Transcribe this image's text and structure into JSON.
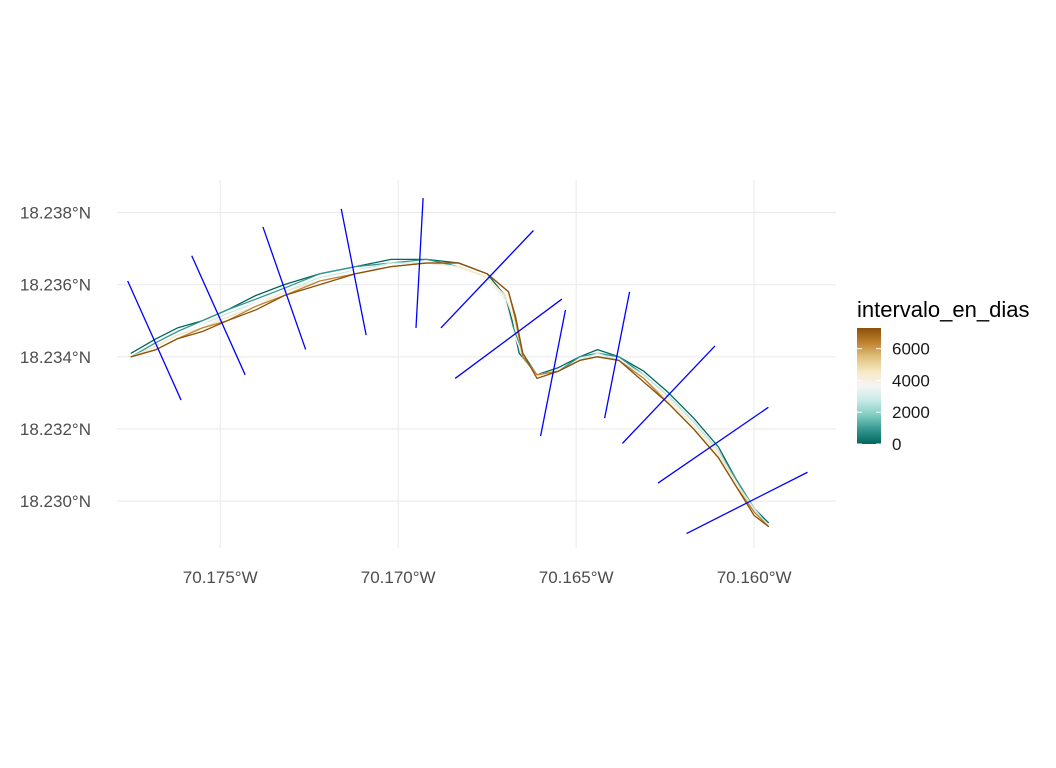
{
  "chart_data": {
    "type": "map",
    "xlabel": "",
    "ylabel": "",
    "x_ticks": [
      {
        "value": -70.175,
        "label": "70.175°W"
      },
      {
        "value": -70.17,
        "label": "70.170°W"
      },
      {
        "value": -70.165,
        "label": "70.165°W"
      },
      {
        "value": -70.16,
        "label": "70.160°W"
      }
    ],
    "y_ticks": [
      {
        "value": 18.238,
        "label": "18.238°N"
      },
      {
        "value": 18.236,
        "label": "18.236°N"
      },
      {
        "value": 18.234,
        "label": "18.234°N"
      },
      {
        "value": 18.232,
        "label": "18.232°N"
      },
      {
        "value": 18.23,
        "label": "18.230°N"
      }
    ],
    "xlim": [
      -70.1779,
      -70.1577
    ],
    "ylim": [
      18.2287,
      18.2389
    ],
    "grid": true,
    "legend": {
      "title": "intervalo_en_dias",
      "placement": "right",
      "breaks": [
        0,
        2000,
        4000,
        6000
      ],
      "labels": [
        "0",
        "2000",
        "4000",
        "6000"
      ],
      "range": [
        0,
        7300
      ],
      "colors": [
        "#01665e",
        "#35978f",
        "#80cdc1",
        "#c7eae5",
        "#f5f5f5",
        "#f6e8c3",
        "#dfc27d",
        "#bf812d",
        "#8c510a"
      ]
    },
    "transect_color": "#0000ff",
    "transects": [
      {
        "from": [
          -70.1776,
          18.2361
        ],
        "to": [
          -70.1761,
          18.2328
        ]
      },
      {
        "from": [
          -70.1758,
          18.2368
        ],
        "to": [
          -70.1743,
          18.2335
        ]
      },
      {
        "from": [
          -70.1738,
          18.2376
        ],
        "to": [
          -70.1726,
          18.2342
        ]
      },
      {
        "from": [
          -70.1716,
          18.2381
        ],
        "to": [
          -70.1709,
          18.2346
        ]
      },
      {
        "from": [
          -70.1693,
          18.2384
        ],
        "to": [
          -70.1695,
          18.2348
        ]
      },
      {
        "from": [
          -70.1662,
          18.2375
        ],
        "to": [
          -70.1688,
          18.2348
        ]
      },
      {
        "from": [
          -70.1654,
          18.2356
        ],
        "to": [
          -70.1684,
          18.2334
        ]
      },
      {
        "from": [
          -70.1653,
          18.2353
        ],
        "to": [
          -70.166,
          18.2318
        ]
      },
      {
        "from": [
          -70.1635,
          18.2358
        ],
        "to": [
          -70.1642,
          18.2323
        ]
      },
      {
        "from": [
          -70.1611,
          18.2343
        ],
        "to": [
          -70.1637,
          18.2316
        ]
      },
      {
        "from": [
          -70.1596,
          18.2326
        ],
        "to": [
          -70.1627,
          18.2305
        ]
      },
      {
        "from": [
          -70.1585,
          18.2308
        ],
        "to": [
          -70.1619,
          18.2291
        ]
      }
    ],
    "series": [
      {
        "value": 0,
        "color": "#01665e",
        "points": [
          [
            -70.1775,
            18.2341
          ],
          [
            -70.1768,
            18.2345
          ],
          [
            -70.1762,
            18.2348
          ],
          [
            -70.1755,
            18.235
          ],
          [
            -70.1748,
            18.2353
          ],
          [
            -70.174,
            18.2357
          ],
          [
            -70.1732,
            18.236
          ],
          [
            -70.1722,
            18.2363
          ],
          [
            -70.1712,
            18.2365
          ],
          [
            -70.1702,
            18.2367
          ],
          [
            -70.1692,
            18.2367
          ],
          [
            -70.1683,
            18.2366
          ],
          [
            -70.1675,
            18.2363
          ],
          [
            -70.167,
            18.2357
          ],
          [
            -70.1668,
            18.235
          ],
          [
            -70.1666,
            18.2341
          ],
          [
            -70.1661,
            18.2335
          ],
          [
            -70.1655,
            18.2337
          ],
          [
            -70.1649,
            18.234
          ],
          [
            -70.1644,
            18.2342
          ],
          [
            -70.1638,
            18.234
          ],
          [
            -70.1631,
            18.2336
          ],
          [
            -70.1624,
            18.233
          ],
          [
            -70.1617,
            18.2323
          ],
          [
            -70.161,
            18.2315
          ],
          [
            -70.1605,
            18.2306
          ],
          [
            -70.16,
            18.2298
          ],
          [
            -70.1596,
            18.2294
          ]
        ]
      },
      {
        "value": 1500,
        "color": "#35978f",
        "points": [
          [
            -70.1775,
            18.234
          ],
          [
            -70.1768,
            18.2344
          ],
          [
            -70.1762,
            18.2347
          ],
          [
            -70.1755,
            18.235
          ],
          [
            -70.1748,
            18.2353
          ],
          [
            -70.174,
            18.2356
          ],
          [
            -70.1732,
            18.2359
          ],
          [
            -70.1722,
            18.2363
          ],
          [
            -70.1712,
            18.2365
          ],
          [
            -70.1702,
            18.2366
          ],
          [
            -70.1692,
            18.2367
          ],
          [
            -70.1683,
            18.2365
          ],
          [
            -70.1675,
            18.2362
          ],
          [
            -70.167,
            18.2356
          ],
          [
            -70.1668,
            18.2349
          ],
          [
            -70.1665,
            18.2341
          ],
          [
            -70.1661,
            18.2335
          ],
          [
            -70.1655,
            18.2336
          ],
          [
            -70.1649,
            18.234
          ],
          [
            -70.1644,
            18.2341
          ],
          [
            -70.1638,
            18.234
          ],
          [
            -70.1631,
            18.2335
          ],
          [
            -70.1624,
            18.2329
          ],
          [
            -70.1617,
            18.2322
          ],
          [
            -70.161,
            18.2314
          ],
          [
            -70.1605,
            18.2306
          ],
          [
            -70.16,
            18.2298
          ],
          [
            -70.1596,
            18.2293
          ]
        ]
      },
      {
        "value": 3000,
        "color": "#c7eae5",
        "points": [
          [
            -70.1775,
            18.234
          ],
          [
            -70.1768,
            18.2343
          ],
          [
            -70.1762,
            18.2346
          ],
          [
            -70.1755,
            18.2349
          ],
          [
            -70.1748,
            18.2352
          ],
          [
            -70.174,
            18.2355
          ],
          [
            -70.1732,
            18.2358
          ],
          [
            -70.1722,
            18.2362
          ],
          [
            -70.1712,
            18.2364
          ],
          [
            -70.1702,
            18.2366
          ],
          [
            -70.1692,
            18.2366
          ],
          [
            -70.1683,
            18.2365
          ],
          [
            -70.1675,
            18.2362
          ],
          [
            -70.167,
            18.2356
          ],
          [
            -70.1668,
            18.2348
          ],
          [
            -70.1665,
            18.234
          ],
          [
            -70.1661,
            18.2335
          ],
          [
            -70.1655,
            18.2336
          ],
          [
            -70.1649,
            18.2339
          ],
          [
            -70.1644,
            18.2341
          ],
          [
            -70.1638,
            18.2339
          ],
          [
            -70.1631,
            18.2335
          ],
          [
            -70.1624,
            18.2329
          ],
          [
            -70.1617,
            18.2322
          ],
          [
            -70.161,
            18.2314
          ],
          [
            -70.1605,
            18.2305
          ],
          [
            -70.16,
            18.2298
          ],
          [
            -70.1596,
            18.2293
          ]
        ]
      },
      {
        "value": 4000,
        "color": "#f5f5f5",
        "points": [
          [
            -70.1775,
            18.234
          ],
          [
            -70.1768,
            18.2343
          ],
          [
            -70.1762,
            18.2346
          ],
          [
            -70.1755,
            18.2349
          ],
          [
            -70.1748,
            18.2351
          ],
          [
            -70.174,
            18.2355
          ],
          [
            -70.1732,
            18.2358
          ],
          [
            -70.1722,
            18.2361
          ],
          [
            -70.1712,
            18.2364
          ],
          [
            -70.1702,
            18.2365
          ],
          [
            -70.1692,
            18.2366
          ],
          [
            -70.1683,
            18.2365
          ],
          [
            -70.1675,
            18.2362
          ],
          [
            -70.167,
            18.2356
          ],
          [
            -70.1668,
            18.2348
          ],
          [
            -70.1665,
            18.234
          ],
          [
            -70.1661,
            18.2335
          ],
          [
            -70.1655,
            18.2336
          ],
          [
            -70.1649,
            18.2339
          ],
          [
            -70.1644,
            18.234
          ],
          [
            -70.1638,
            18.2339
          ],
          [
            -70.1631,
            18.2334
          ],
          [
            -70.1624,
            18.2328
          ],
          [
            -70.1617,
            18.2321
          ],
          [
            -70.161,
            18.2313
          ],
          [
            -70.1605,
            18.2305
          ],
          [
            -70.16,
            18.2297
          ],
          [
            -70.1596,
            18.2293
          ]
        ]
      },
      {
        "value": 5000,
        "color": "#f6e8c3",
        "points": [
          [
            -70.1775,
            18.234
          ],
          [
            -70.1768,
            18.2343
          ],
          [
            -70.1762,
            18.2346
          ],
          [
            -70.1755,
            18.2348
          ],
          [
            -70.1748,
            18.2351
          ],
          [
            -70.174,
            18.2354
          ],
          [
            -70.1732,
            18.2358
          ],
          [
            -70.1722,
            18.2361
          ],
          [
            -70.1712,
            18.2363
          ],
          [
            -70.1702,
            18.2365
          ],
          [
            -70.1692,
            18.2366
          ],
          [
            -70.1683,
            18.2365
          ],
          [
            -70.1675,
            18.2362
          ],
          [
            -70.167,
            18.2357
          ],
          [
            -70.1667,
            18.2349
          ],
          [
            -70.1665,
            18.234
          ],
          [
            -70.1661,
            18.2335
          ],
          [
            -70.1655,
            18.2336
          ],
          [
            -70.1649,
            18.2339
          ],
          [
            -70.1644,
            18.234
          ],
          [
            -70.1638,
            18.2339
          ],
          [
            -70.1631,
            18.2334
          ],
          [
            -70.1624,
            18.2328
          ],
          [
            -70.1617,
            18.2321
          ],
          [
            -70.161,
            18.2313
          ],
          [
            -70.1605,
            18.2305
          ],
          [
            -70.16,
            18.2297
          ],
          [
            -70.1596,
            18.2293
          ]
        ]
      },
      {
        "value": 6500,
        "color": "#bf812d",
        "points": [
          [
            -70.1775,
            18.234
          ],
          [
            -70.1768,
            18.2342
          ],
          [
            -70.1762,
            18.2345
          ],
          [
            -70.1755,
            18.2348
          ],
          [
            -70.1748,
            18.235
          ],
          [
            -70.174,
            18.2354
          ],
          [
            -70.1732,
            18.2357
          ],
          [
            -70.1722,
            18.2361
          ],
          [
            -70.1712,
            18.2363
          ],
          [
            -70.1702,
            18.2365
          ],
          [
            -70.1692,
            18.2366
          ],
          [
            -70.1683,
            18.2366
          ],
          [
            -70.1675,
            18.2363
          ],
          [
            -70.1669,
            18.2358
          ],
          [
            -70.1667,
            18.235
          ],
          [
            -70.1665,
            18.234
          ],
          [
            -70.1661,
            18.2335
          ],
          [
            -70.1655,
            18.2336
          ],
          [
            -70.1649,
            18.2339
          ],
          [
            -70.1644,
            18.234
          ],
          [
            -70.1638,
            18.2339
          ],
          [
            -70.1631,
            18.2334
          ],
          [
            -70.1624,
            18.2327
          ],
          [
            -70.1617,
            18.232
          ],
          [
            -70.161,
            18.2312
          ],
          [
            -70.1605,
            18.2304
          ],
          [
            -70.16,
            18.2297
          ],
          [
            -70.1596,
            18.2293
          ]
        ]
      },
      {
        "value": 7200,
        "color": "#8c510a",
        "points": [
          [
            -70.1775,
            18.234
          ],
          [
            -70.1768,
            18.2342
          ],
          [
            -70.1762,
            18.2345
          ],
          [
            -70.1755,
            18.2347
          ],
          [
            -70.1748,
            18.235
          ],
          [
            -70.174,
            18.2353
          ],
          [
            -70.1732,
            18.2357
          ],
          [
            -70.1722,
            18.236
          ],
          [
            -70.1712,
            18.2363
          ],
          [
            -70.1702,
            18.2365
          ],
          [
            -70.1692,
            18.2366
          ],
          [
            -70.1683,
            18.2366
          ],
          [
            -70.1675,
            18.2363
          ],
          [
            -70.1669,
            18.2358
          ],
          [
            -70.1667,
            18.2351
          ],
          [
            -70.1665,
            18.2341
          ],
          [
            -70.1661,
            18.2334
          ],
          [
            -70.1655,
            18.2336
          ],
          [
            -70.1649,
            18.2339
          ],
          [
            -70.1644,
            18.234
          ],
          [
            -70.1638,
            18.2339
          ],
          [
            -70.1631,
            18.2333
          ],
          [
            -70.1624,
            18.2327
          ],
          [
            -70.1617,
            18.232
          ],
          [
            -70.161,
            18.2312
          ],
          [
            -70.1605,
            18.2304
          ],
          [
            -70.16,
            18.2296
          ],
          [
            -70.1596,
            18.2293
          ]
        ]
      }
    ]
  }
}
